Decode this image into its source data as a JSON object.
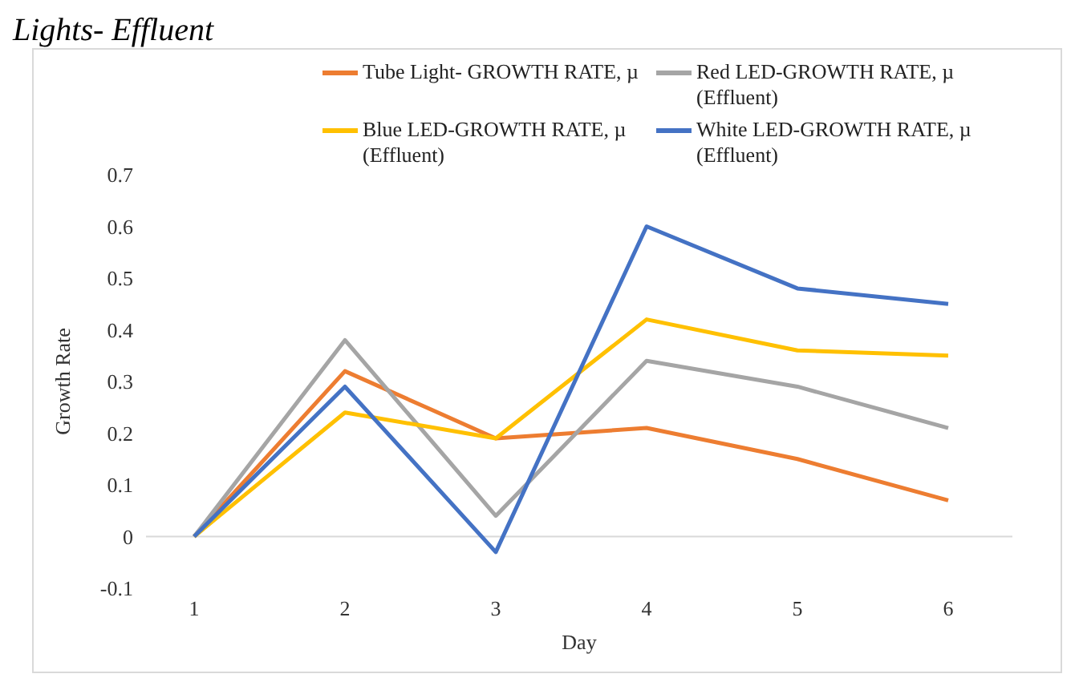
{
  "chart_data": {
    "type": "line",
    "title": "Lights- Effluent",
    "xlabel": "Day",
    "ylabel": "Growth Rate",
    "categories": [
      "1",
      "2",
      "3",
      "4",
      "5",
      "6"
    ],
    "series": [
      {
        "name": "Tube Light- GROWTH RATE, µ",
        "color": "#ed7d31",
        "values": [
          0,
          0.32,
          0.19,
          0.21,
          0.15,
          0.07
        ]
      },
      {
        "name": "Red LED-GROWTH RATE, µ (Effluent)",
        "color": "#a5a5a5",
        "values": [
          0,
          0.38,
          0.04,
          0.34,
          0.29,
          0.21
        ]
      },
      {
        "name": "Blue LED-GROWTH RATE, µ (Effluent)",
        "color": "#ffc000",
        "values": [
          0,
          0.24,
          0.19,
          0.42,
          0.36,
          0.35
        ]
      },
      {
        "name": "White LED-GROWTH RATE, µ (Effluent)",
        "color": "#4472c4",
        "values": [
          0,
          0.29,
          -0.03,
          0.6,
          0.48,
          0.45
        ]
      }
    ],
    "ylim": [
      -0.1,
      0.7
    ],
    "yticks": [
      -0.1,
      0,
      0.1,
      0.2,
      0.3,
      0.4,
      0.5,
      0.6,
      0.7
    ],
    "ref_lines": [
      {
        "axis": "y",
        "value": 0,
        "color": "#d9d9d9"
      }
    ],
    "grid": false,
    "legend": "top",
    "marker": "none",
    "line_style": "solid"
  }
}
